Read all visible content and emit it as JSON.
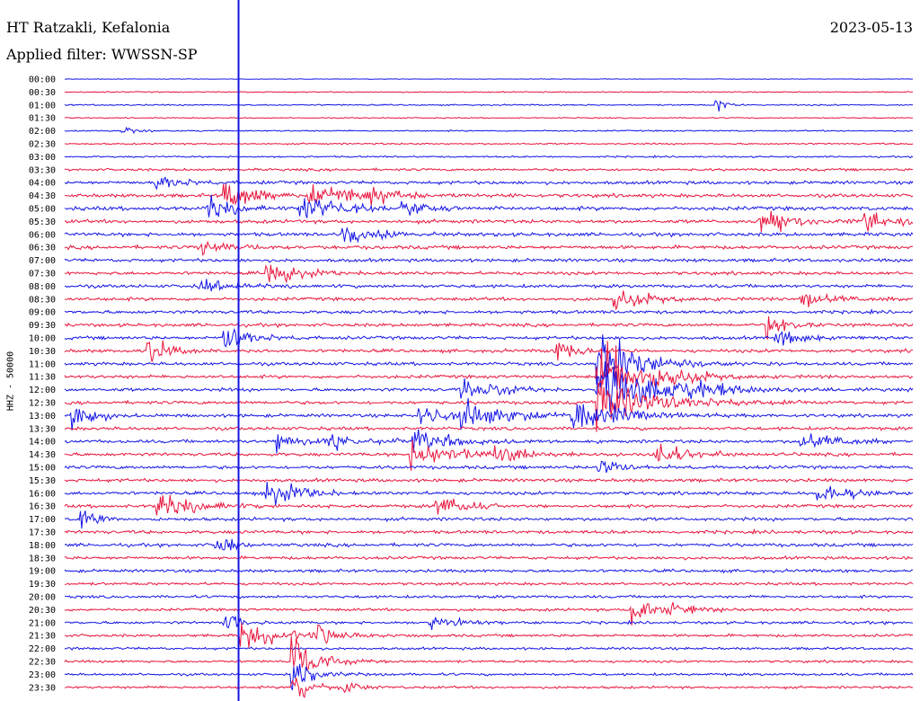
{
  "header": {
    "station": "HT Ratzakli, Kefalonia",
    "date": "2023-05-13",
    "filter": "Applied filter: WWSSN-SP"
  },
  "chart_data": {
    "type": "line",
    "title": "HT Ratzakli, Kefalonia",
    "ylabel": "HHZ - 50000",
    "rows": [
      "00:00",
      "00:30",
      "01:00",
      "01:30",
      "02:00",
      "02:30",
      "03:00",
      "03:30",
      "04:00",
      "04:30",
      "05:00",
      "05:30",
      "06:00",
      "06:30",
      "07:00",
      "07:30",
      "08:00",
      "08:30",
      "09:00",
      "09:30",
      "10:00",
      "10:30",
      "11:00",
      "11:30",
      "12:00",
      "12:30",
      "13:00",
      "13:30",
      "14:00",
      "14:30",
      "15:00",
      "15:30",
      "16:00",
      "16:30",
      "17:00",
      "17:30",
      "18:00",
      "18:30",
      "19:00",
      "19:30",
      "20:00",
      "20:30",
      "21:00",
      "21:30",
      "22:00",
      "22:30",
      "23:00",
      "23:30"
    ],
    "series_colors": [
      "#1414e6",
      "#e8143c"
    ],
    "cursor_fraction": 0.205,
    "noise_levels": [
      0.2,
      0.4,
      0.5,
      0.4,
      0.5,
      0.6,
      0.6,
      0.9,
      1.2,
      1.3,
      1.4,
      1.3,
      1.3,
      1.3,
      1.2,
      1.2,
      1.2,
      1.2,
      1.2,
      1.2,
      1.2,
      1.2,
      1.2,
      1.2,
      1.2,
      1.2,
      1.2,
      1.2,
      1.2,
      1.2,
      1.2,
      1.2,
      1.2,
      1.2,
      1.2,
      1.2,
      1.2,
      1.1,
      1.1,
      1.0,
      1.0,
      1.0,
      1.0,
      1.0,
      0.9,
      0.9,
      0.9,
      0.9
    ],
    "events": [
      {
        "row": 2,
        "x": 0.77,
        "amp": 8,
        "dur": 0.012
      },
      {
        "row": 4,
        "x": 0.07,
        "amp": 4,
        "dur": 0.02
      },
      {
        "row": 8,
        "x": 0.11,
        "amp": 10,
        "dur": 0.03
      },
      {
        "row": 9,
        "x": 0.19,
        "amp": 14,
        "dur": 0.04
      },
      {
        "row": 9,
        "x": 0.29,
        "amp": 12,
        "dur": 0.06
      },
      {
        "row": 9,
        "x": 0.36,
        "amp": 10,
        "dur": 0.04
      },
      {
        "row": 10,
        "x": 0.17,
        "amp": 12,
        "dur": 0.03
      },
      {
        "row": 10,
        "x": 0.28,
        "amp": 16,
        "dur": 0.05
      },
      {
        "row": 10,
        "x": 0.4,
        "amp": 8,
        "dur": 0.03
      },
      {
        "row": 11,
        "x": 0.82,
        "amp": 12,
        "dur": 0.05
      },
      {
        "row": 11,
        "x": 0.94,
        "amp": 12,
        "dur": 0.04
      },
      {
        "row": 12,
        "x": 0.33,
        "amp": 12,
        "dur": 0.04
      },
      {
        "row": 13,
        "x": 0.16,
        "amp": 10,
        "dur": 0.04
      },
      {
        "row": 15,
        "x": 0.24,
        "amp": 12,
        "dur": 0.04
      },
      {
        "row": 16,
        "x": 0.16,
        "amp": 8,
        "dur": 0.04
      },
      {
        "row": 17,
        "x": 0.65,
        "amp": 10,
        "dur": 0.05
      },
      {
        "row": 17,
        "x": 0.87,
        "amp": 10,
        "dur": 0.04
      },
      {
        "row": 19,
        "x": 0.83,
        "amp": 12,
        "dur": 0.03
      },
      {
        "row": 20,
        "x": 0.19,
        "amp": 16,
        "dur": 0.03
      },
      {
        "row": 20,
        "x": 0.84,
        "amp": 10,
        "dur": 0.03
      },
      {
        "row": 21,
        "x": 0.1,
        "amp": 12,
        "dur": 0.03
      },
      {
        "row": 21,
        "x": 0.58,
        "amp": 12,
        "dur": 0.03
      },
      {
        "row": 22,
        "x": 0.63,
        "amp": 30,
        "dur": 0.05
      },
      {
        "row": 23,
        "x": 0.63,
        "amp": 34,
        "dur": 0.06
      },
      {
        "row": 24,
        "x": 0.47,
        "amp": 12,
        "dur": 0.05
      },
      {
        "row": 24,
        "x": 0.63,
        "amp": 28,
        "dur": 0.07
      },
      {
        "row": 24,
        "x": 0.72,
        "amp": 12,
        "dur": 0.05
      },
      {
        "row": 25,
        "x": 0.63,
        "amp": 26,
        "dur": 0.07
      },
      {
        "row": 26,
        "x": 0.01,
        "amp": 14,
        "dur": 0.03
      },
      {
        "row": 26,
        "x": 0.42,
        "amp": 10,
        "dur": 0.04
      },
      {
        "row": 26,
        "x": 0.47,
        "amp": 14,
        "dur": 0.06
      },
      {
        "row": 26,
        "x": 0.6,
        "amp": 20,
        "dur": 0.06
      },
      {
        "row": 28,
        "x": 0.25,
        "amp": 12,
        "dur": 0.04
      },
      {
        "row": 28,
        "x": 0.31,
        "amp": 12,
        "dur": 0.04
      },
      {
        "row": 28,
        "x": 0.41,
        "amp": 14,
        "dur": 0.05
      },
      {
        "row": 28,
        "x": 0.87,
        "amp": 12,
        "dur": 0.04
      },
      {
        "row": 29,
        "x": 0.41,
        "amp": 14,
        "dur": 0.05
      },
      {
        "row": 29,
        "x": 0.51,
        "amp": 10,
        "dur": 0.04
      },
      {
        "row": 29,
        "x": 0.7,
        "amp": 12,
        "dur": 0.04
      },
      {
        "row": 30,
        "x": 0.63,
        "amp": 12,
        "dur": 0.03
      },
      {
        "row": 32,
        "x": 0.24,
        "amp": 14,
        "dur": 0.04
      },
      {
        "row": 32,
        "x": 0.89,
        "amp": 10,
        "dur": 0.04
      },
      {
        "row": 33,
        "x": 0.11,
        "amp": 12,
        "dur": 0.05
      },
      {
        "row": 33,
        "x": 0.44,
        "amp": 10,
        "dur": 0.04
      },
      {
        "row": 34,
        "x": 0.02,
        "amp": 12,
        "dur": 0.02
      },
      {
        "row": 36,
        "x": 0.18,
        "amp": 12,
        "dur": 0.02
      },
      {
        "row": 41,
        "x": 0.67,
        "amp": 14,
        "dur": 0.05
      },
      {
        "row": 42,
        "x": 0.43,
        "amp": 8,
        "dur": 0.04
      },
      {
        "row": 42,
        "x": 0.19,
        "amp": 10,
        "dur": 0.02
      },
      {
        "row": 43,
        "x": 0.21,
        "amp": 14,
        "dur": 0.05
      },
      {
        "row": 43,
        "x": 0.3,
        "amp": 12,
        "dur": 0.03
      },
      {
        "row": 45,
        "x": 0.27,
        "amp": 22,
        "dur": 0.03
      },
      {
        "row": 46,
        "x": 0.27,
        "amp": 14,
        "dur": 0.03
      },
      {
        "row": 47,
        "x": 0.27,
        "amp": 18,
        "dur": 0.02
      },
      {
        "row": 47,
        "x": 0.33,
        "amp": 6,
        "dur": 0.02
      }
    ]
  }
}
